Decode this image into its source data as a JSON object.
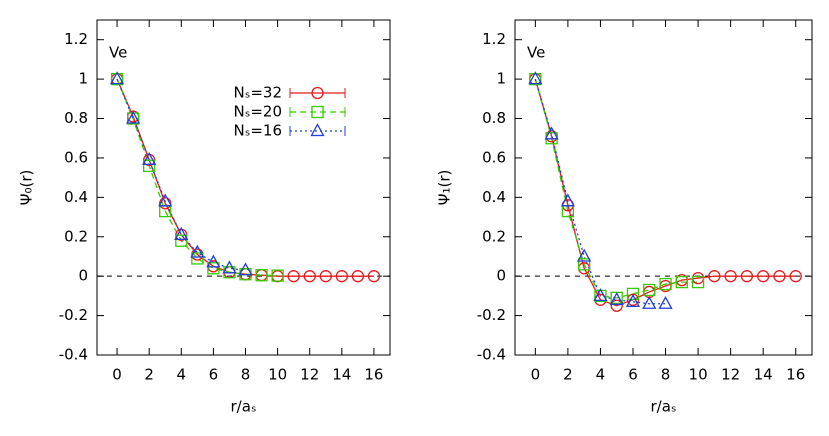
{
  "chart_data": [
    {
      "type": "line",
      "ylabel": "Ψ₀(r)",
      "xlabel": "r/aₛ",
      "annotation": "Ve",
      "xlim": [
        -1.25,
        17
      ],
      "ylim": [
        -0.4,
        1.3
      ],
      "xticks": [
        0,
        2,
        4,
        6,
        8,
        10,
        12,
        14,
        16
      ],
      "yticks": [
        -0.4,
        -0.2,
        0,
        0.2,
        0.4,
        0.6,
        0.8,
        1,
        1.2
      ],
      "legend": "upper right",
      "series": [
        {
          "name": "Nₛ=32",
          "color": "#e41a1c",
          "marker": "circle",
          "line_style": "solid",
          "x": [
            0,
            1,
            2,
            3,
            4,
            5,
            6,
            7,
            8,
            9,
            10,
            11,
            12,
            13,
            14,
            15,
            16
          ],
          "values": [
            1,
            0.81,
            0.59,
            0.37,
            0.21,
            0.11,
            0.05,
            0.02,
            0.01,
            0.005,
            0,
            0,
            0,
            0,
            0,
            0,
            0
          ]
        },
        {
          "name": "Nₛ=20",
          "color": "#33cc00",
          "marker": "square",
          "line_style": "dashed",
          "x": [
            0,
            1,
            2,
            3,
            4,
            5,
            6,
            7,
            8,
            9,
            10
          ],
          "values": [
            1,
            0.8,
            0.56,
            0.33,
            0.18,
            0.09,
            0.04,
            0.02,
            0.01,
            0.005,
            0.003
          ]
        },
        {
          "name": "Nₛ=16",
          "color": "#1f3fd6",
          "marker": "triangle",
          "line_style": "dotted",
          "x": [
            0,
            1,
            2,
            3,
            4,
            5,
            6,
            7,
            8
          ],
          "values": [
            1,
            0.8,
            0.59,
            0.38,
            0.21,
            0.12,
            0.07,
            0.04,
            0.03
          ]
        }
      ]
    },
    {
      "type": "line",
      "ylabel": "Ψ₁(r)",
      "xlabel": "r/aₛ",
      "annotation": "Ve",
      "xlim": [
        -1.25,
        17
      ],
      "ylim": [
        -0.4,
        1.3
      ],
      "xticks": [
        0,
        2,
        4,
        6,
        8,
        10,
        12,
        14,
        16
      ],
      "yticks": [
        -0.4,
        -0.2,
        0,
        0.2,
        0.4,
        0.6,
        0.8,
        1,
        1.2
      ],
      "series": [
        {
          "color": "#e41a1c",
          "marker": "circle",
          "line_style": "solid",
          "x": [
            0,
            1,
            2,
            3,
            4,
            5,
            6,
            7,
            8,
            9,
            10,
            11,
            12,
            13,
            14,
            15,
            16
          ],
          "values": [
            1,
            0.71,
            0.36,
            0.04,
            -0.12,
            -0.15,
            -0.12,
            -0.08,
            -0.05,
            -0.02,
            -0.01,
            0,
            0,
            0,
            0,
            0,
            0
          ]
        },
        {
          "color": "#33cc00",
          "marker": "square",
          "line_style": "dashed",
          "x": [
            0,
            1,
            2,
            3,
            4,
            5,
            6,
            7,
            8,
            9,
            10
          ],
          "values": [
            1,
            0.7,
            0.33,
            0.06,
            -0.1,
            -0.11,
            -0.09,
            -0.07,
            -0.04,
            -0.03,
            -0.03
          ]
        },
        {
          "color": "#1f3fd6",
          "marker": "triangle",
          "line_style": "dotted",
          "x": [
            0,
            1,
            2,
            3,
            4,
            5,
            6,
            7,
            8
          ],
          "values": [
            1,
            0.72,
            0.38,
            0.1,
            -0.1,
            -0.12,
            -0.13,
            -0.14,
            -0.14
          ]
        }
      ]
    }
  ]
}
